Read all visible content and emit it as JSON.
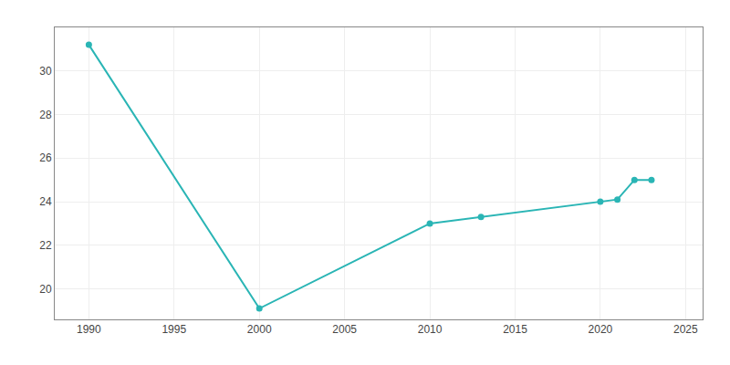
{
  "chart_data": {
    "type": "line",
    "x": [
      1990,
      2000,
      2010,
      2013,
      2020,
      2021,
      2022,
      2023
    ],
    "values": [
      31.2,
      19.1,
      23.0,
      23.3,
      24.0,
      24.1,
      25.0,
      25.0
    ],
    "color": "#2ab5b5",
    "marker": "circle",
    "xlim": [
      1988,
      2026
    ],
    "ylim": [
      18.6,
      32.0
    ],
    "xticks": [
      1990,
      1995,
      2000,
      2005,
      2010,
      2015,
      2020,
      2025
    ],
    "yticks": [
      20,
      22,
      24,
      26,
      28,
      30
    ],
    "grid": true
  }
}
